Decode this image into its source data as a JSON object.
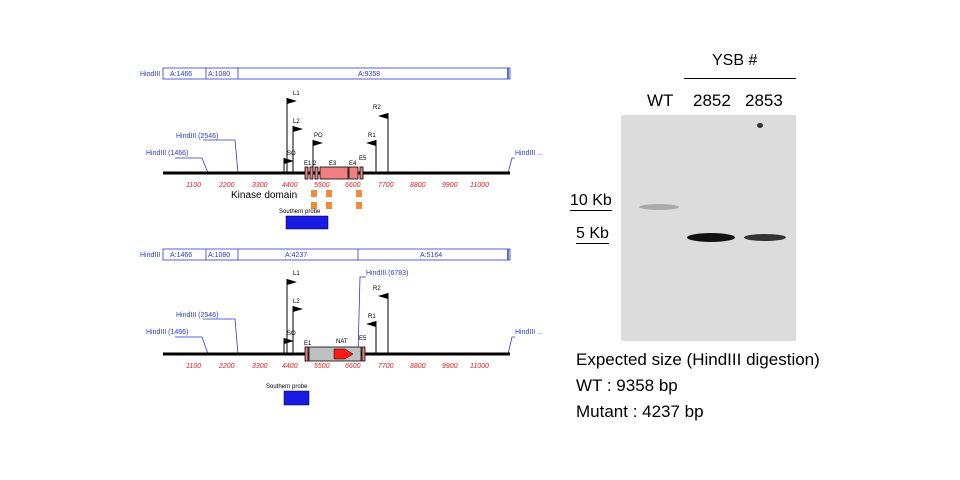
{
  "maps": {
    "wt": {
      "fragments": [
        "HindIII",
        "A:1466",
        "A:1080",
        "A:9358"
      ],
      "sites": [
        "HindIII (2546)",
        "HindIII (1466)",
        "HindIII ..."
      ],
      "ticks": [
        "1100",
        "2200",
        "3300",
        "4400",
        "5500",
        "6600",
        "7700",
        "8800",
        "9900",
        "11000"
      ],
      "primers": [
        "L1",
        "L2",
        "PO",
        "R2",
        "R1",
        "SO"
      ],
      "exons": [
        "E1",
        "2",
        "E3",
        "E4",
        "E5"
      ],
      "domain_label": "Kinase domain",
      "probe_label": "Southern probe"
    },
    "mutant": {
      "fragments": [
        "HindIII",
        "A:1466",
        "A:1080",
        "A:4237",
        "A:5164"
      ],
      "sites": [
        "HindIII (2546)",
        "HindIII (1466)",
        "HindIII (6783)",
        "HindIII ..."
      ],
      "ticks": [
        "1100",
        "2200",
        "3300",
        "4400",
        "5500",
        "6600",
        "7700",
        "8800",
        "9900",
        "11000"
      ],
      "primers": [
        "L1",
        "L2",
        "R2",
        "R1",
        "SO"
      ],
      "exons": [
        "E1",
        "E5"
      ],
      "cassette_label": "NAT",
      "probe_label": "Southern probe"
    }
  },
  "blot": {
    "group_label": "YSB #",
    "lanes": [
      "WT",
      "2852",
      "2853"
    ],
    "markers": [
      "10 Kb",
      "5 Kb"
    ],
    "expected": {
      "title": "Expected size (HindIII digestion)",
      "wt": "WT : 9358 bp",
      "mutant": "Mutant : 4237 bp"
    }
  },
  "colors": {
    "map_label_blue": "#2a3bd0",
    "tick_red": "#e02020",
    "exon_salmon": "#f08080",
    "cassette_gray": "#c0c0c0",
    "nat_red": "#ff1a1a",
    "probe_blue": "#1a1ae6",
    "domain_orange": "#f08a3c"
  }
}
